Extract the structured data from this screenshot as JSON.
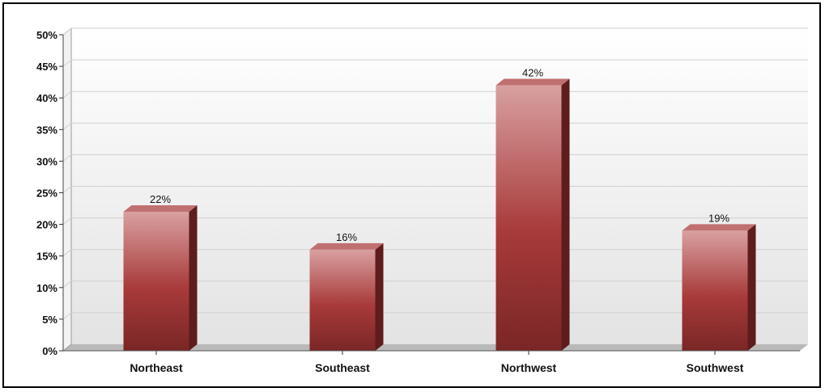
{
  "chart_data": {
    "type": "bar",
    "categories": [
      "Northeast",
      "Southeast",
      "Northwest",
      "Southwest"
    ],
    "values": [
      22,
      16,
      42,
      19
    ],
    "data_labels": [
      "22%",
      "16%",
      "42%",
      "19%"
    ],
    "yticks": [
      "0%",
      "5%",
      "10%",
      "15%",
      "20%",
      "25%",
      "30%",
      "35%",
      "40%",
      "45%",
      "50%"
    ],
    "ylim": [
      0,
      50
    ],
    "ytick_step": 5,
    "grid": true,
    "legend": "none",
    "style": "3d-bar",
    "colors": {
      "bar_top": "#d9a0a0",
      "bar_mid": "#a83a3a",
      "bar_bottom": "#7a2626",
      "bar_side": "#5e1c1c",
      "bar_cap": "#c07070",
      "grid": "#d0d0d0",
      "wall_top": "#ffffff",
      "wall_bottom": "#e3e3e3"
    }
  }
}
